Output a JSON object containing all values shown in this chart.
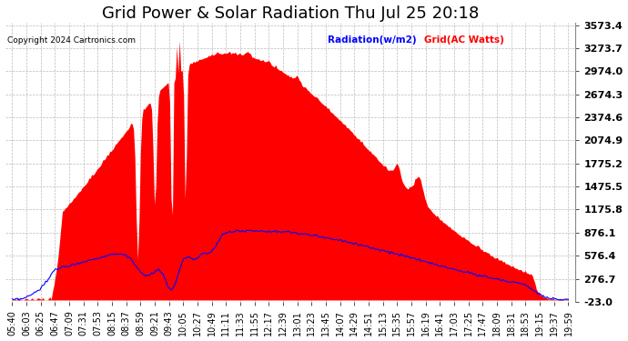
{
  "title": "Grid Power & Solar Radiation Thu Jul 25 20:18",
  "copyright": "Copyright 2024 Cartronics.com",
  "legend_radiation": "Radiation(w/m2)",
  "legend_grid": "Grid(AC Watts)",
  "ymin": -23.0,
  "ymax": 3573.4,
  "ytick_vals": [
    -23.0,
    276.7,
    576.4,
    876.1,
    1175.8,
    1475.5,
    1775.2,
    2074.9,
    2374.6,
    2674.3,
    2974.0,
    3273.7,
    3573.4
  ],
  "background_color": "#ffffff",
  "red_fill_color": "#ff0000",
  "blue_line_color": "#0000ff",
  "grid_color": "#bbbbbb",
  "title_fontsize": 13,
  "xlabel_fontsize": 7.0,
  "ylabel_fontsize": 8,
  "xtick_labels": [
    "05:40",
    "06:03",
    "06:25",
    "06:47",
    "07:09",
    "07:31",
    "07:53",
    "08:15",
    "08:37",
    "08:59",
    "09:21",
    "09:43",
    "10:05",
    "10:27",
    "10:49",
    "11:11",
    "11:33",
    "11:55",
    "12:17",
    "12:39",
    "13:01",
    "13:23",
    "13:45",
    "14:07",
    "14:29",
    "14:51",
    "15:13",
    "15:35",
    "15:57",
    "16:19",
    "16:41",
    "17:03",
    "17:25",
    "17:47",
    "18:09",
    "18:31",
    "18:53",
    "19:15",
    "19:37",
    "19:59"
  ]
}
